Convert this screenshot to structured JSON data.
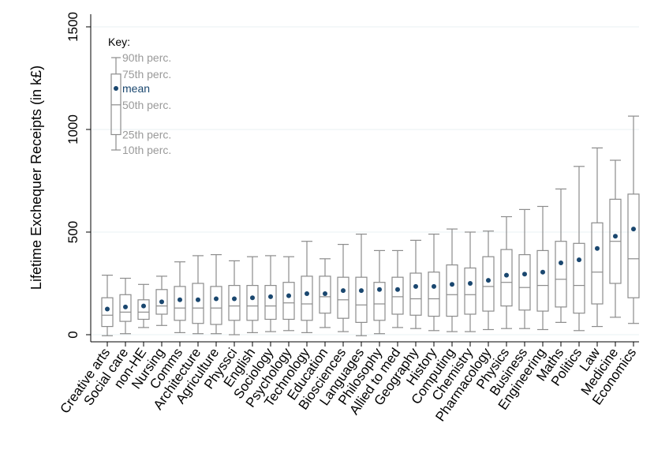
{
  "chart_data": {
    "type": "box",
    "title": "",
    "xlabel": "",
    "ylabel": "Lifetime Exchequer Receipts (in k£)",
    "ylim": [
      0,
      1500
    ],
    "yticks": [
      0,
      500,
      1000,
      1500
    ],
    "grid": true,
    "colors": {
      "box": "#8c8c8c",
      "mean": "#1a476f",
      "grid": "#eaf2f3",
      "key_text": "#9a9a9a"
    },
    "key": {
      "title": "Key:",
      "labels": [
        "90th perc.",
        "75th perc.",
        "mean",
        "50th perc.",
        "25th perc.",
        "10th perc."
      ],
      "p10": 900,
      "p25": 975,
      "p50": 1120,
      "mean": 1200,
      "p75": 1270,
      "p90": 1350
    },
    "categories": [
      "Creative arts",
      "Social care",
      "non-HE",
      "Nursing",
      "Comms",
      "Architecture",
      "Agriculture",
      "Physsci",
      "English",
      "Sociology",
      "Psychology",
      "Technology",
      "Education",
      "Biosciences",
      "Languages",
      "Philosophy",
      "Allied to med",
      "Geography",
      "History",
      "Computing",
      "Chemistry",
      "Pharmacology",
      "Physics",
      "Business",
      "Engineering",
      "Maths",
      "Politics",
      "Law",
      "Medicine",
      "Economics"
    ],
    "p10": [
      -5,
      5,
      35,
      45,
      10,
      5,
      5,
      0,
      10,
      15,
      20,
      10,
      35,
      15,
      -5,
      5,
      35,
      30,
      20,
      15,
      15,
      25,
      30,
      30,
      25,
      60,
      20,
      40,
      85,
      55
    ],
    "p25": [
      40,
      65,
      75,
      100,
      70,
      55,
      50,
      70,
      70,
      75,
      75,
      70,
      105,
      80,
      60,
      70,
      100,
      95,
      90,
      90,
      100,
      115,
      140,
      120,
      115,
      135,
      105,
      150,
      250,
      180
    ],
    "p50": [
      95,
      110,
      110,
      140,
      130,
      130,
      130,
      140,
      140,
      140,
      155,
      150,
      185,
      170,
      145,
      150,
      185,
      175,
      175,
      195,
      195,
      235,
      255,
      230,
      240,
      270,
      240,
      305,
      455,
      370
    ],
    "mean": [
      125,
      135,
      140,
      160,
      170,
      170,
      175,
      175,
      180,
      185,
      190,
      200,
      200,
      215,
      215,
      220,
      220,
      235,
      235,
      245,
      250,
      265,
      290,
      295,
      305,
      350,
      365,
      420,
      480,
      515
    ],
    "p75": [
      180,
      195,
      170,
      220,
      235,
      250,
      235,
      240,
      240,
      240,
      255,
      285,
      285,
      280,
      280,
      255,
      280,
      300,
      305,
      340,
      325,
      380,
      415,
      390,
      410,
      455,
      445,
      545,
      660,
      685
    ],
    "p90": [
      290,
      275,
      245,
      285,
      355,
      385,
      390,
      360,
      380,
      385,
      380,
      455,
      370,
      440,
      490,
      410,
      410,
      460,
      490,
      515,
      500,
      505,
      575,
      610,
      625,
      710,
      820,
      910,
      850,
      1065
    ]
  }
}
